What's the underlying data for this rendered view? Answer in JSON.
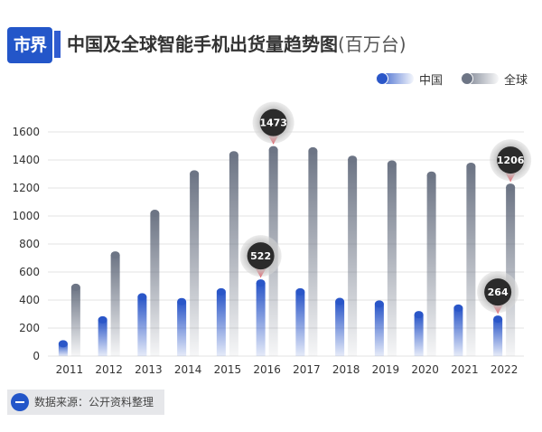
{
  "header": {
    "logo_text": "市界",
    "title": "中国及全球智能手机出货量趋势图",
    "title_unit": "(百万台)"
  },
  "legend": {
    "china_label": "中国",
    "global_label": "全球"
  },
  "source": "数据来源：公开资料整理",
  "colors": {
    "china": "#2a56c8",
    "global": "#6d7585",
    "callout_pin": "#e21b2a",
    "callout_bubble": "#2b2b2b"
  },
  "chart_data": {
    "type": "bar",
    "title": "中国及全球智能手机出货量趋势图(百万台)",
    "xlabel": "",
    "ylabel": "",
    "categories": [
      "2011",
      "2012",
      "2013",
      "2014",
      "2015",
      "2016",
      "2017",
      "2018",
      "2019",
      "2020",
      "2021",
      "2022"
    ],
    "series": [
      {
        "name": "中国",
        "values": [
          88,
          259,
          423,
          389,
          459,
          522,
          459,
          390,
          372,
          296,
          343,
          264
        ]
      },
      {
        "name": "全球",
        "values": [
          491,
          722,
          1019,
          1301,
          1437,
          1473,
          1465,
          1405,
          1371,
          1292,
          1355,
          1206
        ]
      }
    ],
    "ylim": [
      0,
      1600
    ],
    "yticks": [
      0,
      200,
      400,
      600,
      800,
      1000,
      1200,
      1400,
      1600
    ],
    "grid": true,
    "legend_position": "top-right",
    "callouts": [
      {
        "series": "全球",
        "category": "2016",
        "label": "1473"
      },
      {
        "series": "中国",
        "category": "2016",
        "label": "522"
      },
      {
        "series": "全球",
        "category": "2022",
        "label": "1206"
      },
      {
        "series": "中国",
        "category": "2022",
        "label": "264"
      }
    ]
  }
}
